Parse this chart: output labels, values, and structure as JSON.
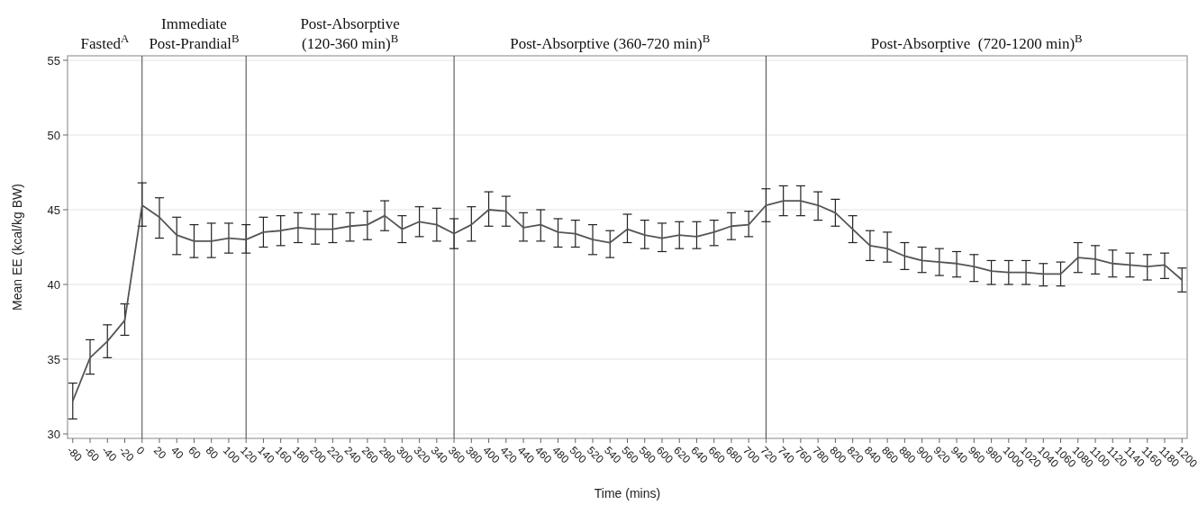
{
  "chart_data": {
    "type": "line",
    "xlabel": "Time (mins)",
    "ylabel": "Mean EE (kcal/kg BW)",
    "x": [
      -80,
      -60,
      -40,
      -20,
      0,
      20,
      40,
      60,
      80,
      100,
      120,
      140,
      160,
      180,
      200,
      220,
      240,
      260,
      280,
      300,
      320,
      340,
      360,
      380,
      400,
      420,
      440,
      460,
      480,
      500,
      520,
      540,
      560,
      580,
      600,
      620,
      640,
      660,
      680,
      700,
      720,
      740,
      760,
      780,
      800,
      820,
      840,
      860,
      880,
      900,
      920,
      940,
      960,
      980,
      1000,
      1020,
      1040,
      1060,
      1080,
      1100,
      1120,
      1140,
      1160,
      1180,
      1200
    ],
    "series": [
      {
        "color": "#555555",
        "values": [
          32.2,
          35.1,
          36.2,
          37.6,
          45.3,
          44.5,
          43.3,
          42.9,
          42.9,
          43.1,
          43.0,
          43.5,
          43.6,
          43.8,
          43.7,
          43.7,
          43.9,
          44.0,
          44.6,
          43.7,
          44.2,
          44.0,
          43.4,
          44.0,
          45.0,
          44.9,
          43.8,
          44.0,
          43.5,
          43.4,
          43.0,
          42.8,
          43.7,
          43.3,
          43.1,
          43.3,
          43.2,
          43.5,
          43.9,
          44.0,
          45.3,
          45.6,
          45.6,
          45.3,
          44.8,
          43.7,
          42.6,
          42.4,
          41.9,
          41.6,
          41.5,
          41.4,
          41.2,
          40.9,
          40.8,
          40.8,
          40.7,
          40.7,
          41.8,
          41.7,
          41.4,
          41.3,
          41.2,
          41.3,
          40.3
        ],
        "errors": [
          [
            31.0,
            33.4
          ],
          [
            34.0,
            36.3
          ],
          [
            35.1,
            37.3
          ],
          [
            36.6,
            38.7
          ],
          [
            43.9,
            46.8
          ],
          [
            43.1,
            45.8
          ],
          [
            42.0,
            44.5
          ],
          [
            41.8,
            44.0
          ],
          [
            41.8,
            44.1
          ],
          [
            42.1,
            44.1
          ],
          [
            42.1,
            44.0
          ],
          [
            42.5,
            44.5
          ],
          [
            42.6,
            44.6
          ],
          [
            42.8,
            44.8
          ],
          [
            42.7,
            44.7
          ],
          [
            42.8,
            44.7
          ],
          [
            42.9,
            44.8
          ],
          [
            43.0,
            44.9
          ],
          [
            43.6,
            45.6
          ],
          [
            42.8,
            44.6
          ],
          [
            43.2,
            45.2
          ],
          [
            42.9,
            45.1
          ],
          [
            42.4,
            44.4
          ],
          [
            42.9,
            45.2
          ],
          [
            43.9,
            46.2
          ],
          [
            43.9,
            45.9
          ],
          [
            42.9,
            44.8
          ],
          [
            42.9,
            45.0
          ],
          [
            42.5,
            44.4
          ],
          [
            42.5,
            44.3
          ],
          [
            42.0,
            44.0
          ],
          [
            41.8,
            43.6
          ],
          [
            42.8,
            44.7
          ],
          [
            42.4,
            44.3
          ],
          [
            42.2,
            44.1
          ],
          [
            42.4,
            44.2
          ],
          [
            42.4,
            44.2
          ],
          [
            42.6,
            44.3
          ],
          [
            43.0,
            44.8
          ],
          [
            43.2,
            44.9
          ],
          [
            44.2,
            46.4
          ],
          [
            44.6,
            46.6
          ],
          [
            44.6,
            46.6
          ],
          [
            44.3,
            46.2
          ],
          [
            43.9,
            45.7
          ],
          [
            42.8,
            44.6
          ],
          [
            41.6,
            43.6
          ],
          [
            41.5,
            43.5
          ],
          [
            41.0,
            42.8
          ],
          [
            40.8,
            42.5
          ],
          [
            40.6,
            42.4
          ],
          [
            40.5,
            42.2
          ],
          [
            40.2,
            42.0
          ],
          [
            40.0,
            41.6
          ],
          [
            40.0,
            41.6
          ],
          [
            40.0,
            41.6
          ],
          [
            39.9,
            41.4
          ],
          [
            39.9,
            41.5
          ],
          [
            40.8,
            42.8
          ],
          [
            40.7,
            42.6
          ],
          [
            40.5,
            42.3
          ],
          [
            40.5,
            42.1
          ],
          [
            40.3,
            42.0
          ],
          [
            40.4,
            42.1
          ],
          [
            39.5,
            41.1
          ]
        ]
      }
    ],
    "xlim": [
      -86,
      1206
    ],
    "xticks": [
      -80,
      -60,
      -40,
      -20,
      0,
      20,
      40,
      60,
      80,
      100,
      120,
      140,
      160,
      180,
      200,
      220,
      240,
      260,
      280,
      300,
      320,
      340,
      360,
      380,
      400,
      420,
      440,
      460,
      480,
      500,
      520,
      540,
      560,
      580,
      600,
      620,
      640,
      660,
      680,
      700,
      720,
      740,
      760,
      780,
      800,
      820,
      840,
      860,
      880,
      900,
      920,
      940,
      960,
      980,
      1000,
      1020,
      1040,
      1060,
      1080,
      1100,
      1120,
      1140,
      1160,
      1180,
      1200
    ],
    "ylim": [
      29.7,
      55.3
    ],
    "yticks": [
      30,
      35,
      40,
      45,
      50,
      55
    ],
    "grid": "y",
    "marker": "none",
    "line_style": "solid",
    "ref_lines": [
      {
        "axis": "x",
        "value": 0,
        "color": "#444444"
      },
      {
        "axis": "x",
        "value": 120,
        "color": "#444444"
      },
      {
        "axis": "x",
        "value": 360,
        "color": "#444444"
      },
      {
        "axis": "x",
        "value": 720,
        "color": "#444444"
      }
    ],
    "annotations": [
      "Fasted$^{A}$",
      "Immediate\nPost-Prandial$^{B}$",
      "Post-Absorptive\n(120-360 min)$^{B}$",
      "Post-Absorptive (360-720 min)$^{B}$",
      "Post-Absorptive  (720-1200 min)$^{B}$"
    ]
  }
}
